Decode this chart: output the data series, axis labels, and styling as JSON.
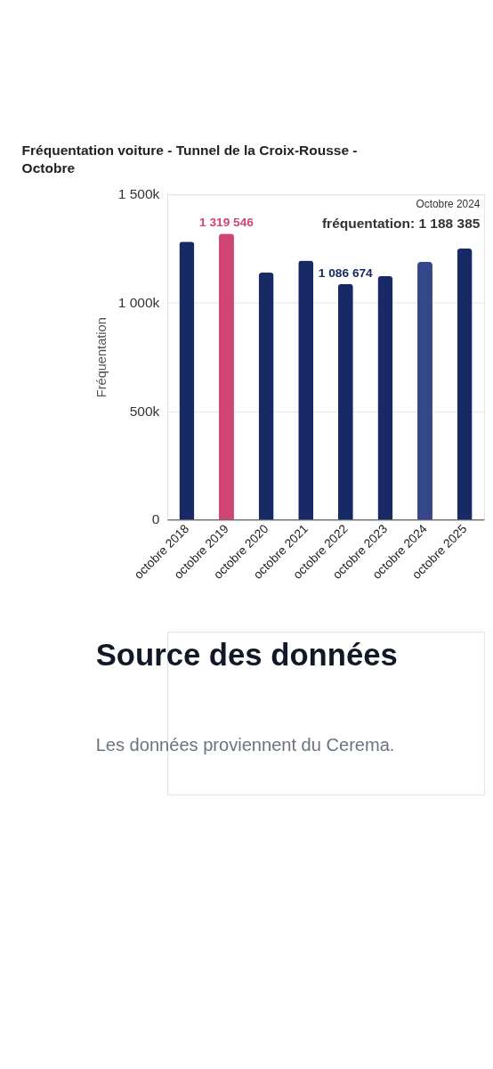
{
  "chart_data": {
    "type": "bar",
    "title": "Fréquentation voiture - Tunnel de la Croix-Rousse - Octobre",
    "ylabel": "Fréquentation",
    "categories": [
      "octobre 2018",
      "octobre 2019",
      "octobre 2020",
      "octobre 2021",
      "octobre 2022",
      "octobre 2023",
      "octobre 2024",
      "octobre 2025"
    ],
    "values": [
      1282000,
      1319546,
      1139000,
      1195000,
      1086674,
      1123000,
      1188385,
      1250000
    ],
    "colors": [
      "#172a66",
      "#cf4573",
      "#172a66",
      "#172a66",
      "#172a66",
      "#172a66",
      "#33478a",
      "#172a66"
    ],
    "value_labels": [
      null,
      "1 319 546",
      null,
      null,
      "1 086 674",
      null,
      null,
      null
    ],
    "ylim": [
      0,
      1500000
    ],
    "yticks": [
      {
        "value": 0,
        "label": "0"
      },
      {
        "value": 500000,
        "label": "500k"
      },
      {
        "value": 1000000,
        "label": "1 000k"
      },
      {
        "value": 1500000,
        "label": "1 500k"
      }
    ],
    "grid": "y",
    "annotations": [
      "Octobre 2024",
      "fréquentation: 1 188 385",
      "Source des données",
      "Les données proviennent du Cerema."
    ]
  }
}
